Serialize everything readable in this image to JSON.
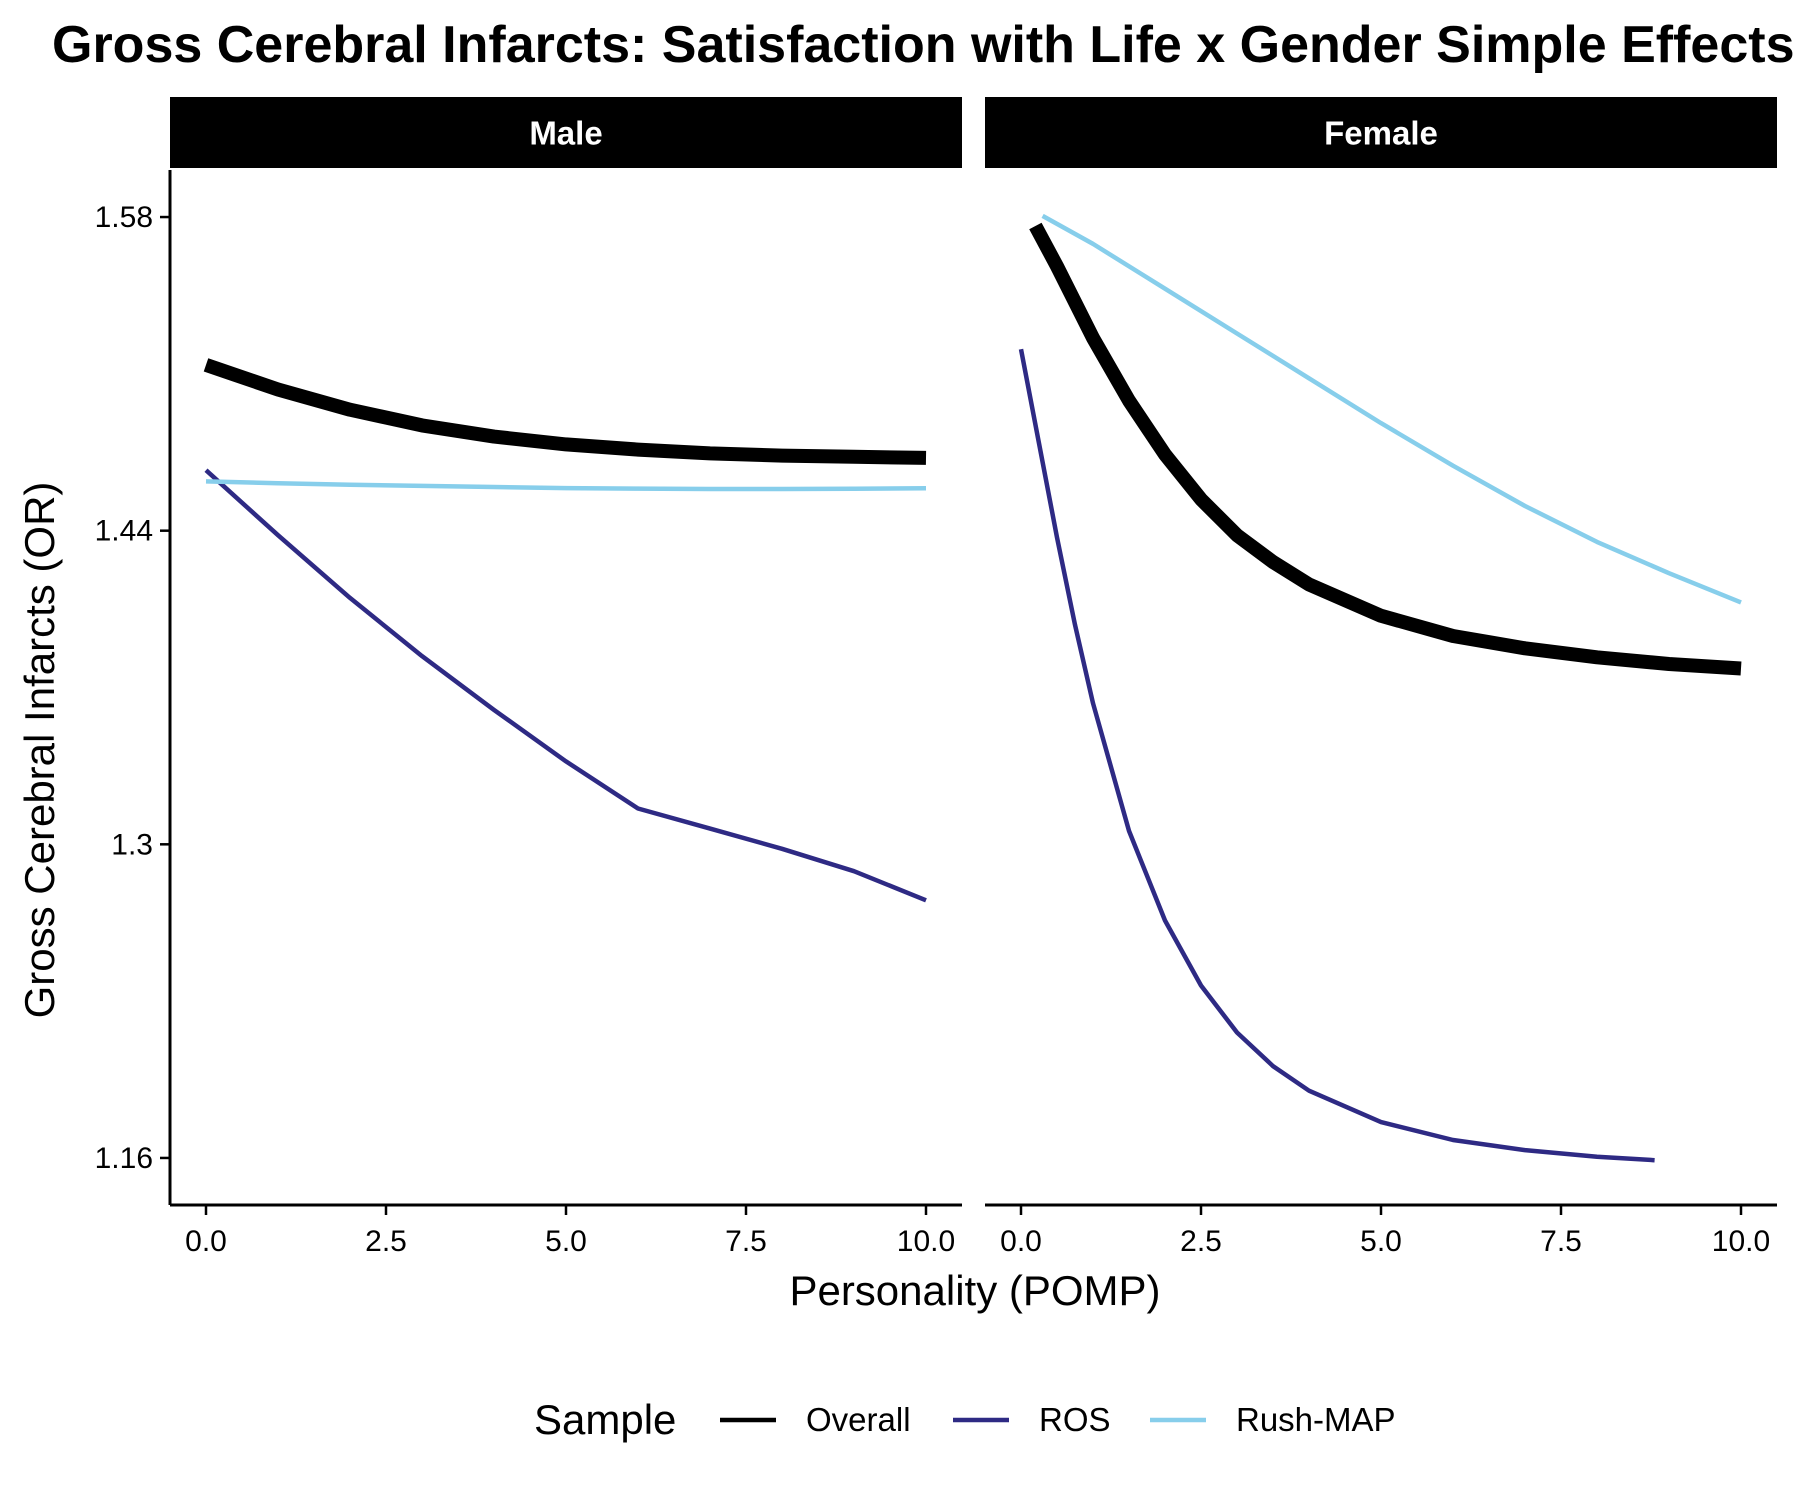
{
  "chart_data": {
    "type": "line",
    "title": "Gross Cerebral Infarcts: Satisfaction with Life x Gender Simple Effects",
    "xlabel": "Personality (POMP)",
    "ylabel": "Gross Cerebral Infarcts (OR)",
    "xlim": [
      -0.5,
      10.5
    ],
    "ylim": [
      1.139,
      1.601
    ],
    "x_ticks": [
      0,
      2.5,
      5,
      7.5,
      10
    ],
    "x_tick_labels": [
      "0.0",
      "2.5",
      "5.0",
      "7.5",
      "10.0"
    ],
    "y_ticks": [
      1.16,
      1.3,
      1.44,
      1.58
    ],
    "y_tick_labels": [
      "1.16",
      "1.3",
      "1.44",
      "1.58"
    ],
    "grid": false,
    "legend": {
      "title": "Sample",
      "position": "bottom",
      "entries": [
        "Overall",
        "ROS",
        "Rush-MAP"
      ]
    },
    "series_styles": [
      {
        "name": "Overall",
        "color": "#000000",
        "weight": "thick"
      },
      {
        "name": "ROS",
        "color": "#2E2A84",
        "weight": "thin"
      },
      {
        "name": "Rush-MAP",
        "color": "#87CEEB",
        "weight": "thin"
      }
    ],
    "panels": [
      {
        "label": "Male",
        "series": [
          {
            "name": "Overall",
            "x": [
              0,
              1,
              2,
              3,
              4,
              5,
              6,
              7,
              8,
              9,
              10
            ],
            "y": [
              1.514,
              1.503,
              1.494,
              1.487,
              1.482,
              1.4785,
              1.4762,
              1.4745,
              1.4735,
              1.473,
              1.4725
            ]
          },
          {
            "name": "ROS",
            "x": [
              0,
              1,
              2,
              3,
              4,
              5,
              6,
              7,
              8,
              9,
              10
            ],
            "y": [
              1.467,
              1.438,
              1.41,
              1.384,
              1.36,
              1.337,
              1.316,
              1.307,
              1.298,
              1.288,
              1.275
            ]
          },
          {
            "name": "Rush-MAP",
            "x": [
              0,
              1,
              2,
              3,
              4,
              5,
              6,
              7,
              8,
              9,
              10
            ],
            "y": [
              1.462,
              1.4612,
              1.4605,
              1.46,
              1.4595,
              1.459,
              1.4588,
              1.4586,
              1.4586,
              1.4587,
              1.4589
            ]
          }
        ]
      },
      {
        "label": "Female",
        "series": [
          {
            "name": "Overall",
            "x": [
              0.2,
              0.5,
              1,
              1.5,
              2,
              2.5,
              3,
              3.5,
              4,
              5,
              6,
              7,
              8,
              9,
              10
            ],
            "y": [
              1.576,
              1.558,
              1.526,
              1.498,
              1.474,
              1.454,
              1.438,
              1.426,
              1.416,
              1.402,
              1.393,
              1.3875,
              1.3835,
              1.3805,
              1.3785
            ]
          },
          {
            "name": "ROS",
            "x": [
              0,
              0.25,
              0.5,
              0.75,
              1,
              1.5,
              2,
              2.5,
              3,
              3.5,
              4,
              5,
              6,
              7,
              8,
              8.8
            ],
            "y": [
              1.521,
              1.479,
              1.437,
              1.398,
              1.363,
              1.306,
              1.266,
              1.237,
              1.216,
              1.201,
              1.19,
              1.176,
              1.168,
              1.1635,
              1.1605,
              1.159
            ]
          },
          {
            "name": "Rush-MAP",
            "x": [
              0.3,
              1,
              2,
              3,
              4,
              5,
              6,
              7,
              8,
              9,
              10
            ],
            "y": [
              1.5805,
              1.568,
              1.548,
              1.528,
              1.508,
              1.488,
              1.469,
              1.451,
              1.435,
              1.421,
              1.408
            ]
          }
        ]
      }
    ]
  }
}
